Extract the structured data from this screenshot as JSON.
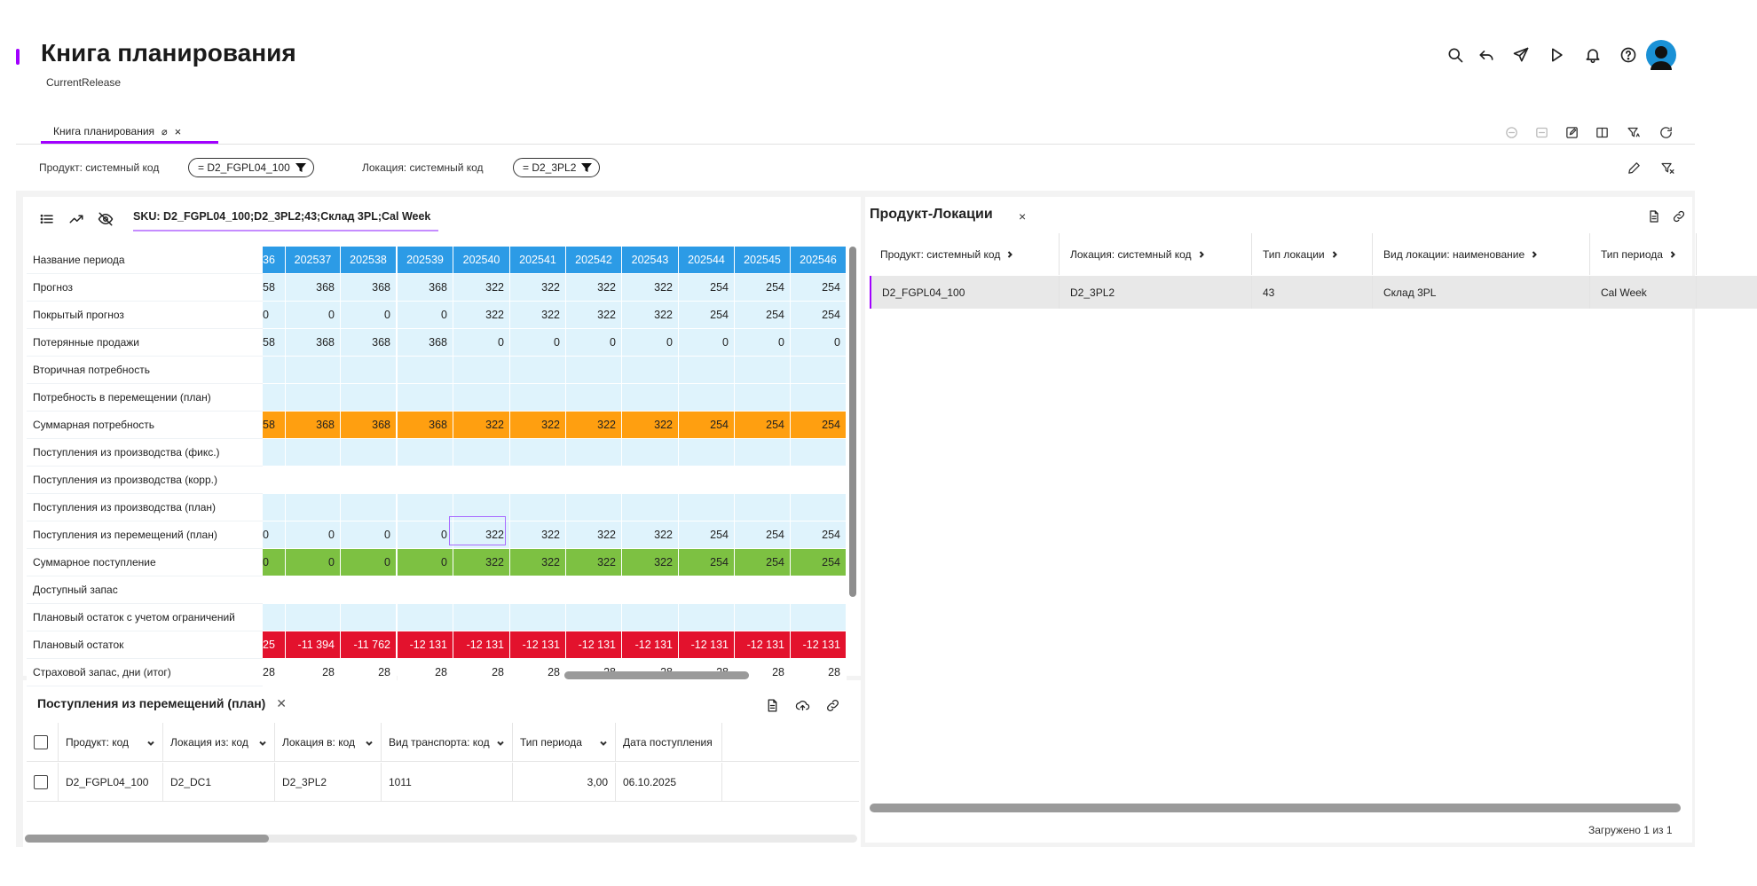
{
  "header": {
    "title": "Книга планирования",
    "subtitle": "CurrentRelease",
    "icons": [
      "search-icon",
      "undo-icon",
      "send-icon",
      "play-icon",
      "bell-icon",
      "help-icon",
      "avatar"
    ]
  },
  "tab": {
    "label": "Книга планирования",
    "pin": "⌀",
    "close": "×"
  },
  "filters": [
    {
      "label": "Продукт: системный код",
      "value": "= D2_FGPL04_100"
    },
    {
      "label": "Локация: системный код",
      "value": "= D2_3PL2"
    }
  ],
  "grid": {
    "sku": "SKU: D2_FGPL04_100;D2_3PL2;43;Склад 3PL;Cal Week",
    "periods": [
      "36",
      "202537",
      "202538",
      "202539",
      "202540",
      "202541",
      "202542",
      "202543",
      "202544",
      "202545",
      "202546"
    ],
    "rows": [
      {
        "label": "Название периода",
        "type": "header"
      },
      {
        "label": "Прогноз",
        "type": "light",
        "values": [
          "58",
          "368",
          "368",
          "368",
          "322",
          "322",
          "322",
          "322",
          "254",
          "254",
          "254"
        ]
      },
      {
        "label": "Покрытый прогноз",
        "type": "light",
        "values": [
          "0",
          "0",
          "0",
          "0",
          "322",
          "322",
          "322",
          "322",
          "254",
          "254",
          "254"
        ]
      },
      {
        "label": "Потерянные продажи",
        "type": "light",
        "values": [
          "58",
          "368",
          "368",
          "368",
          "0",
          "0",
          "0",
          "0",
          "0",
          "0",
          "0"
        ]
      },
      {
        "label": "Вторичная потребность",
        "type": "light",
        "values": [
          "",
          "",
          "",
          "",
          "",
          "",
          "",
          "",
          "",
          "",
          ""
        ]
      },
      {
        "label": "Потребность в перемещении (план)",
        "type": "light",
        "values": [
          "",
          "",
          "",
          "",
          "",
          "",
          "",
          "",
          "",
          "",
          ""
        ]
      },
      {
        "label": "Суммарная потребность",
        "type": "orange",
        "values": [
          "58",
          "368",
          "368",
          "368",
          "322",
          "322",
          "322",
          "322",
          "254",
          "254",
          "254"
        ]
      },
      {
        "label": "Поступления из производства (фикс.)",
        "type": "light",
        "values": [
          "",
          "",
          "",
          "",
          "",
          "",
          "",
          "",
          "",
          "",
          ""
        ]
      },
      {
        "label": "Поступления из производства (корр.)",
        "type": "white",
        "values": [
          "",
          "",
          "",
          "",
          "",
          "",
          "",
          "",
          "",
          "",
          ""
        ]
      },
      {
        "label": "Поступления из производства (план)",
        "type": "light",
        "values": [
          "",
          "",
          "",
          "",
          "",
          "",
          "",
          "",
          "",
          "",
          ""
        ]
      },
      {
        "label": "Поступления из перемещений (план)",
        "type": "light",
        "values": [
          "0",
          "0",
          "0",
          "0",
          "322",
          "322",
          "322",
          "322",
          "254",
          "254",
          "254"
        ]
      },
      {
        "label": "Суммарное поступление",
        "type": "green",
        "values": [
          "0",
          "0",
          "0",
          "0",
          "322",
          "322",
          "322",
          "322",
          "254",
          "254",
          "254"
        ]
      },
      {
        "label": "Доступный запас",
        "type": "white",
        "values": [
          "",
          "",
          "",
          "",
          "",
          "",
          "",
          "",
          "",
          "",
          ""
        ]
      },
      {
        "label": "Плановый остаток с учетом ограничений",
        "type": "light",
        "values": [
          "",
          "",
          "",
          "",
          "",
          "",
          "",
          "",
          "",
          "",
          ""
        ]
      },
      {
        "label": "Плановый остаток",
        "type": "red",
        "values": [
          "25",
          "-11 394",
          "-11 762",
          "-12 131",
          "-12 131",
          "-12 131",
          "-12 131",
          "-12 131",
          "-12 131",
          "-12 131",
          "-12 131"
        ]
      },
      {
        "label": "Страховой запас, дни (итог)",
        "type": "white",
        "values": [
          "28",
          "28",
          "28",
          "28",
          "28",
          "28",
          "28",
          "28",
          "28",
          "28",
          "28"
        ]
      }
    ]
  },
  "bottom_panel": {
    "title": "Поступления из перемещений (план)",
    "close": "✕",
    "columns": [
      "Продукт: код",
      "Локация из: код",
      "Локация в: код",
      "Вид транспорта: код",
      "Тип периода",
      "Дата поступления"
    ],
    "rows": [
      [
        "D2_FGPL04_100",
        "D2_DC1",
        "D2_3PL2",
        "1011",
        "3,00",
        "06.10.2025"
      ]
    ]
  },
  "right_panel": {
    "title": "Продукт-Локации",
    "close": "×",
    "columns": [
      "Продукт: системный код",
      "Локация: системный код",
      "Тип локации",
      "Вид локации: наименование",
      "Тип периода"
    ],
    "rows": [
      [
        "D2_FGPL04_100",
        "D2_3PL2",
        "43",
        "Склад 3PL",
        "Cal Week"
      ]
    ],
    "loaded_text": "Загружено 1 из 1"
  },
  "colors": {
    "accent": "#a100ff",
    "header_blue": "#2c9be6",
    "light_blue": "#dff3fc",
    "orange": "#ff9f10",
    "green": "#7dc142",
    "red": "#e3122d"
  }
}
